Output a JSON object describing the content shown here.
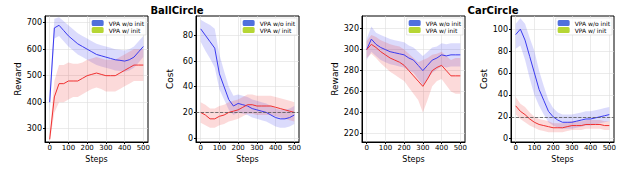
{
  "chart_data": [
    {
      "title": "BallCircle",
      "charts": [
        {
          "type": "line",
          "x_label": "Steps",
          "y_label": "Reward",
          "x": [
            0,
            25,
            50,
            75,
            100,
            125,
            150,
            175,
            200,
            225,
            250,
            275,
            300,
            325,
            350,
            375,
            400,
            425,
            450,
            475,
            500
          ],
          "xlim": [
            -25,
            525
          ],
          "xticks": [
            0,
            100,
            200,
            300,
            400,
            500
          ],
          "ylim": [
            250,
            725
          ],
          "yticks": [
            300,
            400,
            500,
            600,
            700
          ],
          "grid": true,
          "legend": "upper right",
          "series": [
            {
              "name": "VPA w/o init",
              "color": "#3a3af0",
              "values": [
                400,
                680,
                690,
                670,
                650,
                635,
                620,
                610,
                600,
                590,
                580,
                575,
                570,
                565,
                560,
                558,
                555,
                560,
                570,
                590,
                610
              ],
              "lower": [
                360,
                640,
                650,
                630,
                610,
                595,
                580,
                570,
                560,
                550,
                540,
                535,
                530,
                525,
                520,
                518,
                515,
                520,
                530,
                550,
                570
              ],
              "upper": [
                440,
                715,
                720,
                705,
                690,
                675,
                660,
                650,
                640,
                630,
                620,
                615,
                610,
                605,
                600,
                598,
                595,
                600,
                610,
                630,
                650
              ]
            },
            {
              "name": "VPA w/ init",
              "color": "#f03030",
              "values": [
                260,
                420,
                470,
                470,
                480,
                480,
                480,
                490,
                500,
                505,
                510,
                505,
                500,
                500,
                500,
                510,
                520,
                530,
                540,
                540,
                540
              ],
              "lower": [
                250,
                360,
                400,
                400,
                410,
                420,
                420,
                430,
                440,
                450,
                455,
                450,
                440,
                440,
                440,
                450,
                460,
                470,
                480,
                480,
                480
              ],
              "upper": [
                280,
                480,
                540,
                540,
                550,
                545,
                545,
                550,
                560,
                565,
                570,
                565,
                560,
                560,
                560,
                570,
                580,
                590,
                600,
                600,
                600
              ]
            }
          ]
        },
        {
          "type": "line",
          "x_label": "Steps",
          "y_label": "Cost",
          "x": [
            0,
            25,
            50,
            75,
            100,
            125,
            150,
            175,
            200,
            225,
            250,
            275,
            300,
            325,
            350,
            375,
            400,
            425,
            450,
            475,
            500
          ],
          "xlim": [
            -25,
            525
          ],
          "xticks": [
            0,
            100,
            200,
            300,
            400,
            500
          ],
          "ylim": [
            -3,
            95
          ],
          "yticks": [
            0,
            20,
            40,
            60,
            80
          ],
          "reference_line": 20,
          "grid": true,
          "legend": "upper right",
          "series": [
            {
              "name": "VPA w/o init",
              "color": "#3a3af0",
              "values": [
                85,
                80,
                75,
                70,
                50,
                40,
                30,
                25,
                27,
                26,
                25,
                23,
                22,
                21,
                20,
                18,
                16,
                15,
                15,
                16,
                18
              ],
              "lower": [
                75,
                68,
                62,
                55,
                38,
                30,
                22,
                18,
                20,
                19,
                18,
                16,
                15,
                14,
                13,
                11,
                9,
                8,
                8,
                9,
                11
              ],
              "upper": [
                92,
                90,
                88,
                85,
                65,
                52,
                40,
                33,
                34,
                33,
                32,
                30,
                29,
                28,
                27,
                25,
                23,
                22,
                22,
                23,
                25
              ]
            },
            {
              "name": "VPA w/ init",
              "color": "#f03030",
              "values": [
                20,
                18,
                15,
                15,
                17,
                18,
                20,
                21,
                22,
                24,
                26,
                26,
                25,
                25,
                25,
                25,
                24,
                23,
                22,
                21,
                20
              ],
              "lower": [
                12,
                10,
                8,
                8,
                10,
                11,
                13,
                14,
                15,
                17,
                19,
                19,
                18,
                18,
                18,
                18,
                17,
                16,
                15,
                14,
                13
              ],
              "upper": [
                28,
                26,
                23,
                23,
                25,
                26,
                28,
                29,
                30,
                32,
                34,
                34,
                33,
                33,
                33,
                33,
                32,
                31,
                30,
                29,
                28
              ]
            }
          ]
        }
      ]
    },
    {
      "title": "CarCircle",
      "charts": [
        {
          "type": "line",
          "x_label": "Steps",
          "y_label": "Reward",
          "x": [
            0,
            25,
            50,
            75,
            100,
            125,
            150,
            175,
            200,
            225,
            250,
            275,
            300,
            325,
            350,
            375,
            400,
            425,
            450,
            475,
            500
          ],
          "xlim": [
            -25,
            525
          ],
          "xticks": [
            0,
            100,
            200,
            300,
            400,
            500
          ],
          "ylim": [
            212,
            332
          ],
          "yticks": [
            220,
            240,
            260,
            280,
            300,
            320
          ],
          "grid": true,
          "legend": "upper right",
          "series": [
            {
              "name": "VPA w/o init",
              "color": "#3a3af0",
              "values": [
                300,
                310,
                305,
                302,
                300,
                298,
                297,
                296,
                295,
                292,
                290,
                285,
                280,
                285,
                290,
                292,
                295,
                294,
                295,
                295,
                295
              ],
              "lower": [
                290,
                298,
                294,
                290,
                288,
                286,
                285,
                284,
                283,
                280,
                278,
                272,
                266,
                272,
                278,
                281,
                284,
                283,
                284,
                284,
                284
              ],
              "upper": [
                310,
                322,
                316,
                314,
                312,
                310,
                309,
                308,
                307,
                304,
                302,
                298,
                294,
                298,
                302,
                303,
                306,
                305,
                306,
                306,
                306
              ]
            },
            {
              "name": "VPA w/ init",
              "color": "#f03030",
              "values": [
                300,
                305,
                302,
                298,
                295,
                292,
                290,
                288,
                285,
                280,
                275,
                270,
                265,
                272,
                280,
                283,
                285,
                280,
                275,
                275,
                275
              ],
              "lower": [
                292,
                296,
                292,
                287,
                283,
                279,
                276,
                273,
                270,
                264,
                258,
                252,
                240,
                252,
                265,
                270,
                272,
                266,
                260,
                258,
                258
              ],
              "upper": [
                308,
                314,
                312,
                309,
                307,
                305,
                304,
                303,
                300,
                296,
                292,
                288,
                290,
                292,
                295,
                296,
                298,
                294,
                290,
                292,
                292
              ]
            }
          ]
        },
        {
          "type": "line",
          "x_label": "Steps",
          "y_label": "Cost",
          "x": [
            0,
            25,
            50,
            75,
            100,
            125,
            150,
            175,
            200,
            225,
            250,
            275,
            300,
            325,
            350,
            375,
            400,
            425,
            450,
            475,
            500
          ],
          "xlim": [
            -25,
            525
          ],
          "xticks": [
            0,
            100,
            200,
            300,
            400,
            500
          ],
          "ylim": [
            -3,
            112
          ],
          "yticks": [
            0,
            20,
            40,
            60,
            80,
            100
          ],
          "reference_line": 20,
          "grid": true,
          "legend": "upper right",
          "series": [
            {
              "name": "VPA w/o init",
              "color": "#3a3af0",
              "values": [
                95,
                100,
                90,
                75,
                60,
                45,
                35,
                25,
                20,
                17,
                15,
                15,
                15,
                16,
                17,
                18,
                18,
                19,
                20,
                21,
                22
              ],
              "lower": [
                82,
                85,
                72,
                55,
                40,
                30,
                22,
                15,
                12,
                10,
                9,
                9,
                9,
                10,
                11,
                12,
                12,
                13,
                14,
                15,
                16
              ],
              "upper": [
                105,
                110,
                105,
                92,
                80,
                62,
                48,
                35,
                28,
                24,
                22,
                22,
                22,
                23,
                24,
                25,
                25,
                26,
                27,
                28,
                29
              ]
            },
            {
              "name": "VPA w/ init",
              "color": "#f03030",
              "values": [
                30,
                25,
                22,
                18,
                15,
                13,
                12,
                11,
                10,
                10,
                10,
                11,
                12,
                12,
                12,
                13,
                13,
                13,
                13,
                12,
                12
              ],
              "lower": [
                22,
                18,
                15,
                12,
                10,
                8,
                7,
                6,
                6,
                6,
                6,
                7,
                8,
                8,
                8,
                9,
                9,
                9,
                9,
                8,
                8
              ],
              "upper": [
                38,
                32,
                29,
                24,
                20,
                18,
                17,
                16,
                14,
                14,
                14,
                15,
                16,
                16,
                16,
                17,
                17,
                17,
                17,
                16,
                16
              ]
            }
          ]
        }
      ]
    }
  ]
}
